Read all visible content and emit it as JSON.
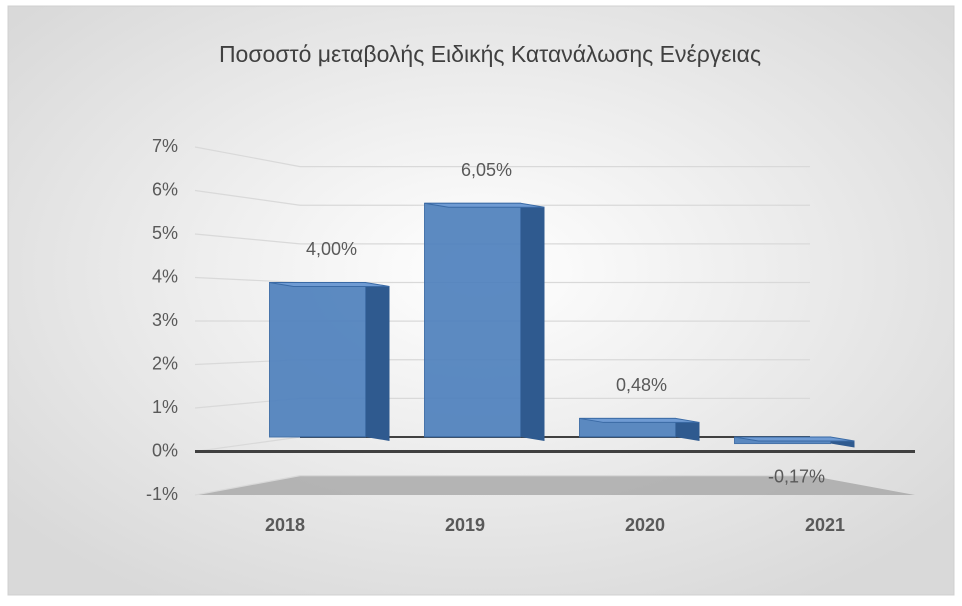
{
  "chart_data": {
    "type": "bar",
    "title": "Ποσοστό μεταβολής Ειδικής Κατανάλωσης Ενέργειας",
    "categories": [
      "2018",
      "2019",
      "2020",
      "2021"
    ],
    "values": [
      4.0,
      6.05,
      0.48,
      -0.17
    ],
    "value_labels": [
      "4,00%",
      "6,05%",
      "0,48%",
      "-0,17%"
    ],
    "color": "#4f81bd",
    "ylim": [
      -1,
      7
    ],
    "yticks": [
      {
        "value": -1,
        "label": "-1%"
      },
      {
        "value": 0,
        "label": "0%"
      },
      {
        "value": 1,
        "label": "1%"
      },
      {
        "value": 2,
        "label": "2%"
      },
      {
        "value": 3,
        "label": "3%"
      },
      {
        "value": 4,
        "label": "4%"
      },
      {
        "value": 5,
        "label": "5%"
      },
      {
        "value": 6,
        "label": "6%"
      },
      {
        "value": 7,
        "label": "7%"
      }
    ],
    "grid": true
  }
}
